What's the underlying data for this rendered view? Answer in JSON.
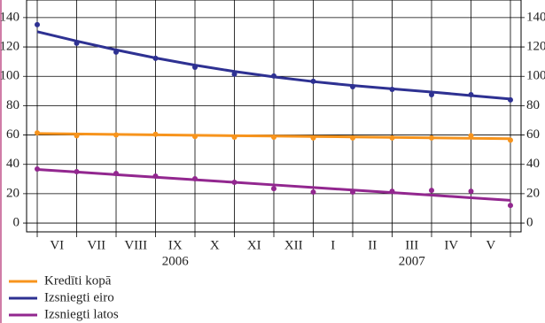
{
  "chart_data": {
    "type": "line",
    "x": [
      0,
      1,
      2,
      3,
      4,
      5,
      6,
      7,
      8,
      9,
      10,
      11,
      12
    ],
    "xlim": [
      -0.27,
      12.27
    ],
    "xticks": [
      {
        "value": 0.5,
        "label": "VI"
      },
      {
        "value": 1.5,
        "label": "VII"
      },
      {
        "value": 2.5,
        "label": "VIII"
      },
      {
        "value": 3.5,
        "label": "IX"
      },
      {
        "value": 4.5,
        "label": "X"
      },
      {
        "value": 5.5,
        "label": "XI"
      },
      {
        "value": 6.5,
        "label": "XII"
      },
      {
        "value": 7.5,
        "label": "I"
      },
      {
        "value": 8.5,
        "label": "II"
      },
      {
        "value": 9.5,
        "label": "III"
      },
      {
        "value": 10.5,
        "label": "IV"
      },
      {
        "value": 11.5,
        "label": "V"
      }
    ],
    "year_labels": [
      {
        "value": 3.5,
        "label": "2006"
      },
      {
        "value": 9.5,
        "label": "2007"
      }
    ],
    "ylim": [
      -6,
      152
    ],
    "yticks": [
      0,
      20,
      40,
      60,
      80,
      100,
      120,
      140
    ],
    "grid": true,
    "series": [
      {
        "name": "Kredīti kopā",
        "color": "#f7941d",
        "values": [
          61.5,
          59.5,
          60,
          60.5,
          59,
          58.5,
          58.5,
          58,
          58,
          58,
          58,
          59.5,
          56.5
        ],
        "trend": [
          61,
          60.7,
          60.4,
          60.1,
          59.8,
          59.5,
          59.3,
          59,
          58.7,
          58.4,
          58.1,
          57.8,
          57.5
        ]
      },
      {
        "name": "Izsniegti eiro",
        "color": "#2e3192",
        "values": [
          135.2,
          122.5,
          116.5,
          112.3,
          106.2,
          101.4,
          100.2,
          96.6,
          92.9,
          91.1,
          87.5,
          87.5,
          83.9
        ],
        "trend": [
          130.4,
          124,
          118,
          112.5,
          107.6,
          103.3,
          99.6,
          96.4,
          93.7,
          91.5,
          89.3,
          86.9,
          84.5
        ]
      },
      {
        "name": "Izsniegti latos",
        "color": "#92278f",
        "values": [
          36.8,
          35,
          33.8,
          32,
          30.2,
          27.8,
          23.5,
          21.1,
          21.1,
          21.7,
          22.3,
          21.7,
          12
        ],
        "trend": [
          36.5,
          34.75,
          33,
          31.25,
          29.5,
          27.75,
          26,
          24.25,
          22.5,
          20.75,
          19,
          17.25,
          15.5
        ]
      }
    ]
  }
}
